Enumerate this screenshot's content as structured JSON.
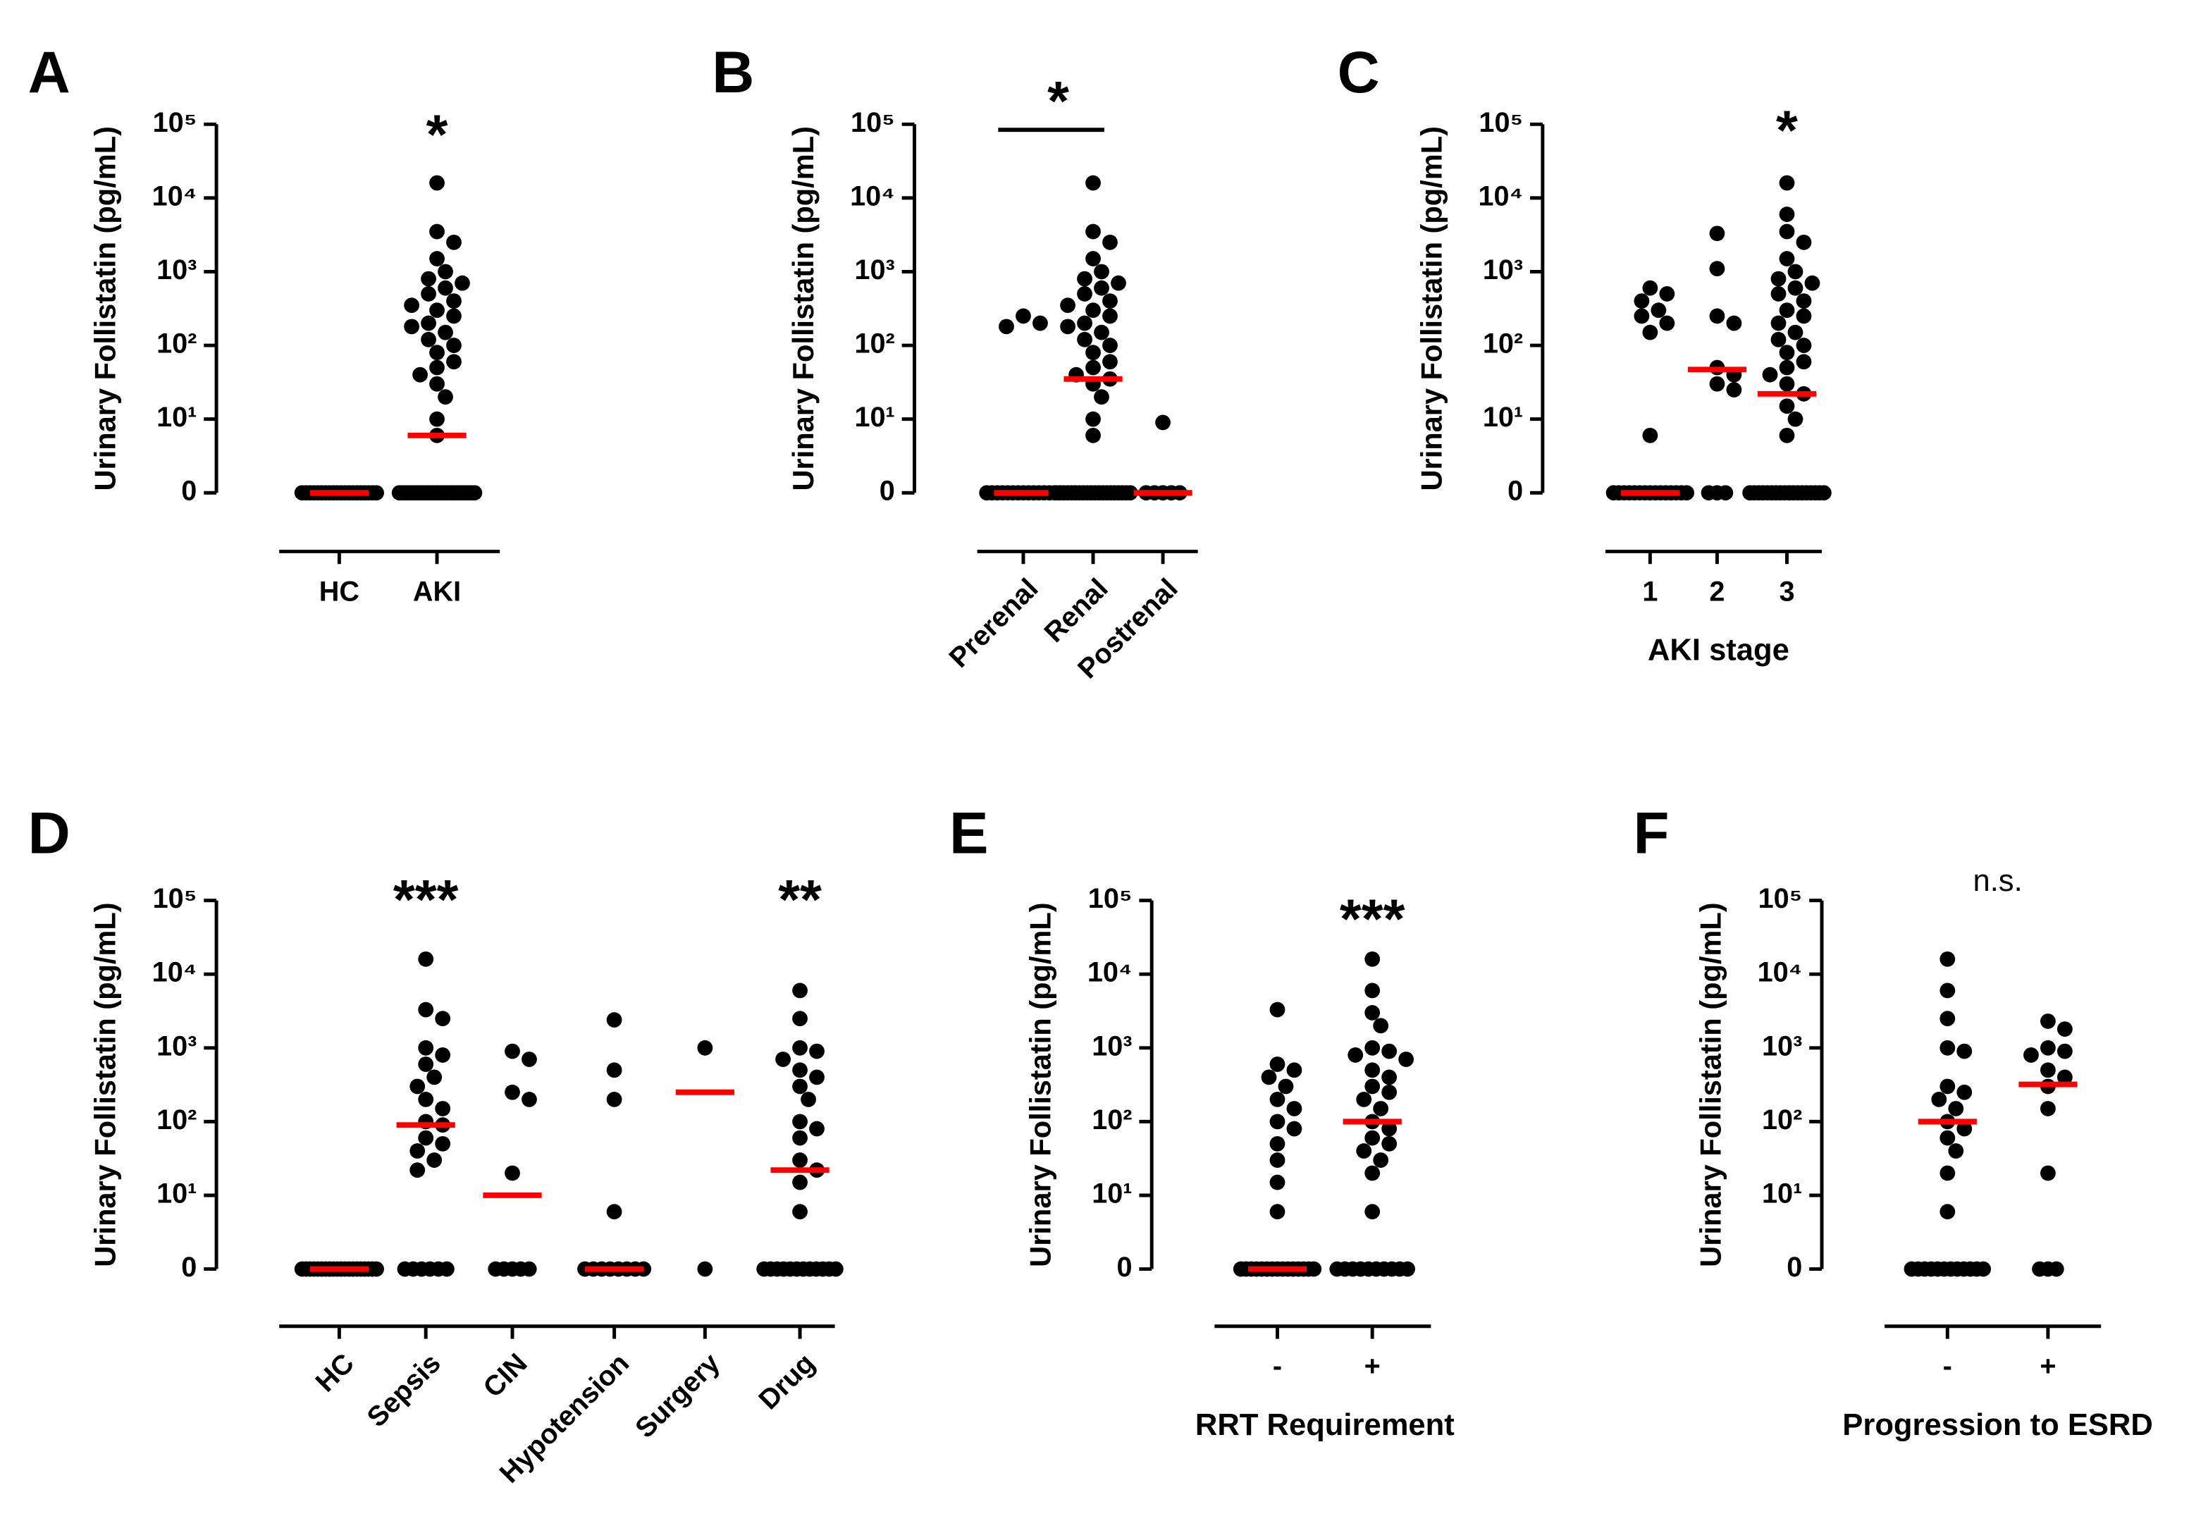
{
  "chart_data": [
    {
      "type": "scatter",
      "panel": "A",
      "ylabel": "Urinary Follistatin (pg/mL)",
      "log_scale": true,
      "color": "#000000",
      "median_color": "#ff0000",
      "ylim": [
        0,
        100000
      ],
      "yticks": [
        0,
        {
          "value": 10,
          "label": "10¹"
        },
        {
          "value": 100,
          "label": "10²"
        },
        {
          "value": 1000,
          "label": "10³"
        },
        {
          "value": 10000,
          "label": "10⁴"
        },
        {
          "value": 100000,
          "label": "10⁵"
        }
      ],
      "categories": [
        "HC",
        "AKI"
      ],
      "values": [
        [
          0,
          0,
          0,
          0,
          0,
          0,
          0,
          0,
          0,
          0,
          0,
          0,
          0,
          0,
          0,
          0,
          0,
          0,
          0,
          0
        ],
        [
          16000,
          3500,
          2500,
          1500,
          1000,
          800,
          700,
          600,
          500,
          400,
          350,
          300,
          250,
          200,
          180,
          150,
          120,
          100,
          80,
          60,
          50,
          40,
          30,
          20,
          10,
          6,
          0,
          0,
          0,
          0,
          0,
          0,
          0,
          0,
          0,
          0,
          0,
          0,
          0,
          0,
          0,
          0,
          0,
          0,
          0,
          0,
          0,
          0,
          0,
          0,
          0,
          0
        ]
      ],
      "medians": [
        0,
        6
      ],
      "annotations": [
        {
          "text": "*",
          "categories": [
            "AKI"
          ]
        }
      ]
    },
    {
      "type": "scatter",
      "panel": "B",
      "ylabel": "Urinary Follistatin (pg/mL)",
      "log_scale": true,
      "color": "#000000",
      "median_color": "#ff0000",
      "rotate_labels": true,
      "ylim": [
        0,
        100000
      ],
      "yticks": [
        0,
        {
          "value": 10,
          "label": "10¹"
        },
        {
          "value": 100,
          "label": "10²"
        },
        {
          "value": 1000,
          "label": "10³"
        },
        {
          "value": 10000,
          "label": "10⁴"
        },
        {
          "value": 100000,
          "label": "10⁵"
        }
      ],
      "categories": [
        "Prerenal",
        "Renal",
        "Postrenal"
      ],
      "values": [
        [
          250,
          200,
          180,
          0,
          0,
          0,
          0,
          0,
          0,
          0,
          0,
          0,
          0,
          0,
          0,
          0,
          0,
          0
        ],
        [
          16000,
          3500,
          2500,
          1500,
          1000,
          800,
          700,
          600,
          500,
          400,
          350,
          300,
          250,
          200,
          180,
          150,
          120,
          100,
          80,
          60,
          50,
          40,
          35,
          30,
          20,
          10,
          6,
          0,
          0,
          0,
          0,
          0,
          0,
          0,
          0,
          0,
          0,
          0,
          0,
          0,
          0,
          0,
          0,
          0,
          0,
          0,
          0
        ],
        [
          9,
          0,
          0,
          0,
          0,
          0
        ]
      ],
      "medians": [
        0,
        35,
        0
      ],
      "annotations": [
        {
          "text": "*",
          "categories": [
            "Prerenal",
            "Renal"
          ]
        }
      ]
    },
    {
      "type": "scatter",
      "panel": "C",
      "ylabel": "Urinary Follistatin (pg/mL)",
      "xlabel": "AKI stage",
      "log_scale": true,
      "color": "#000000",
      "median_color": "#ff0000",
      "ylim": [
        0,
        100000
      ],
      "yticks": [
        0,
        {
          "value": 10,
          "label": "10¹"
        },
        {
          "value": 100,
          "label": "10²"
        },
        {
          "value": 1000,
          "label": "10³"
        },
        {
          "value": 10000,
          "label": "10⁴"
        },
        {
          "value": 100000,
          "label": "10⁵"
        }
      ],
      "categories": [
        "1",
        "2",
        "3"
      ],
      "values": [
        [
          600,
          500,
          400,
          300,
          250,
          200,
          150,
          6,
          0,
          0,
          0,
          0,
          0,
          0,
          0,
          0,
          0,
          0,
          0,
          0,
          0,
          0,
          0
        ],
        [
          3300,
          1100,
          250,
          200,
          50,
          40,
          30,
          25,
          0,
          0,
          0
        ],
        [
          16000,
          6000,
          3500,
          2500,
          1500,
          1000,
          800,
          700,
          600,
          500,
          400,
          300,
          250,
          200,
          150,
          120,
          100,
          80,
          60,
          50,
          40,
          30,
          22,
          15,
          10,
          6,
          0,
          0,
          0,
          0,
          0,
          0,
          0,
          0,
          0,
          0,
          0,
          0,
          0,
          0,
          0,
          0,
          0,
          0
        ]
      ],
      "medians": [
        0,
        47,
        22
      ],
      "annotations": [
        {
          "text": "*",
          "categories": [
            "3"
          ]
        }
      ]
    },
    {
      "type": "scatter",
      "panel": "D",
      "ylabel": "Urinary Follistatin (pg/mL)",
      "log_scale": true,
      "color": "#000000",
      "median_color": "#ff0000",
      "rotate_labels": true,
      "ylim": [
        0,
        100000
      ],
      "yticks": [
        0,
        {
          "value": 10,
          "label": "10¹"
        },
        {
          "value": 100,
          "label": "10²"
        },
        {
          "value": 1000,
          "label": "10³"
        },
        {
          "value": 10000,
          "label": "10⁴"
        },
        {
          "value": 100000,
          "label": "10⁵"
        }
      ],
      "categories": [
        "HC",
        "Sepsis",
        "CIN",
        "Hypotension",
        "Surgery",
        "Drug"
      ],
      "values": [
        [
          0,
          0,
          0,
          0,
          0,
          0,
          0,
          0,
          0,
          0,
          0,
          0,
          0,
          0,
          0,
          0,
          0,
          0,
          0,
          0
        ],
        [
          16000,
          3300,
          2500,
          1000,
          800,
          600,
          400,
          300,
          200,
          150,
          100,
          90,
          60,
          50,
          40,
          30,
          22,
          0,
          0,
          0,
          0,
          0,
          0
        ],
        [
          900,
          700,
          250,
          200,
          20,
          0,
          0,
          0,
          0,
          0
        ],
        [
          2400,
          500,
          200,
          6,
          0,
          0,
          0,
          0,
          0,
          0,
          0,
          0
        ],
        [
          1000,
          0
        ],
        [
          6000,
          2500,
          1000,
          900,
          700,
          500,
          400,
          300,
          200,
          100,
          80,
          60,
          30,
          22,
          15,
          6,
          0,
          0,
          0,
          0,
          0,
          0,
          0,
          0,
          0,
          0,
          0,
          0
        ]
      ],
      "medians": [
        0,
        90,
        10,
        0,
        250,
        22
      ],
      "annotations": [
        {
          "text": "***",
          "categories": [
            "Sepsis"
          ]
        },
        {
          "text": "**",
          "categories": [
            "Drug"
          ]
        }
      ]
    },
    {
      "type": "scatter",
      "panel": "E",
      "ylabel": "Urinary Follistatin (pg/mL)",
      "xlabel": "RRT Requirement",
      "log_scale": true,
      "color": "#000000",
      "median_color": "#ff0000",
      "ylim": [
        0,
        100000
      ],
      "yticks": [
        0,
        {
          "value": 10,
          "label": "10¹"
        },
        {
          "value": 100,
          "label": "10²"
        },
        {
          "value": 1000,
          "label": "10³"
        },
        {
          "value": 10000,
          "label": "10⁴"
        },
        {
          "value": 100000,
          "label": "10⁵"
        }
      ],
      "categories": [
        "-",
        "+"
      ],
      "values": [
        [
          3300,
          600,
          500,
          400,
          300,
          200,
          150,
          100,
          80,
          50,
          30,
          15,
          6,
          0,
          0,
          0,
          0,
          0,
          0,
          0,
          0,
          0,
          0,
          0,
          0,
          0,
          0,
          0
        ],
        [
          16000,
          6000,
          3000,
          2000,
          1000,
          900,
          800,
          700,
          500,
          400,
          300,
          250,
          200,
          150,
          100,
          80,
          60,
          50,
          40,
          30,
          20,
          6,
          0,
          0,
          0,
          0,
          0,
          0,
          0,
          0,
          0,
          0
        ]
      ],
      "medians": [
        0,
        100
      ],
      "annotations": [
        {
          "text": "***",
          "categories": [
            "+"
          ]
        }
      ]
    },
    {
      "type": "scatter",
      "panel": "F",
      "ylabel": "Urinary Follistatin (pg/mL)",
      "xlabel": "Progression to ESRD",
      "log_scale": true,
      "color": "#000000",
      "median_color": "#ff0000",
      "ylim": [
        0,
        100000
      ],
      "yticks": [
        0,
        {
          "value": 10,
          "label": "10¹"
        },
        {
          "value": 100,
          "label": "10²"
        },
        {
          "value": 1000,
          "label": "10³"
        },
        {
          "value": 10000,
          "label": "10⁴"
        },
        {
          "value": 100000,
          "label": "10⁵"
        }
      ],
      "categories": [
        "-",
        "+"
      ],
      "values": [
        [
          16000,
          6000,
          2500,
          1000,
          900,
          300,
          250,
          200,
          150,
          100,
          80,
          60,
          40,
          20,
          6,
          0,
          0,
          0,
          0,
          0,
          0,
          0,
          0,
          0,
          0,
          0,
          0
        ],
        [
          2300,
          1800,
          1000,
          900,
          800,
          500,
          400,
          300,
          150,
          20,
          0,
          0,
          0
        ]
      ],
      "medians": [
        100,
        320
      ],
      "annotations": [
        {
          "text": "n.s.",
          "categories": [
            "-",
            "+"
          ],
          "plain": true
        }
      ]
    }
  ]
}
